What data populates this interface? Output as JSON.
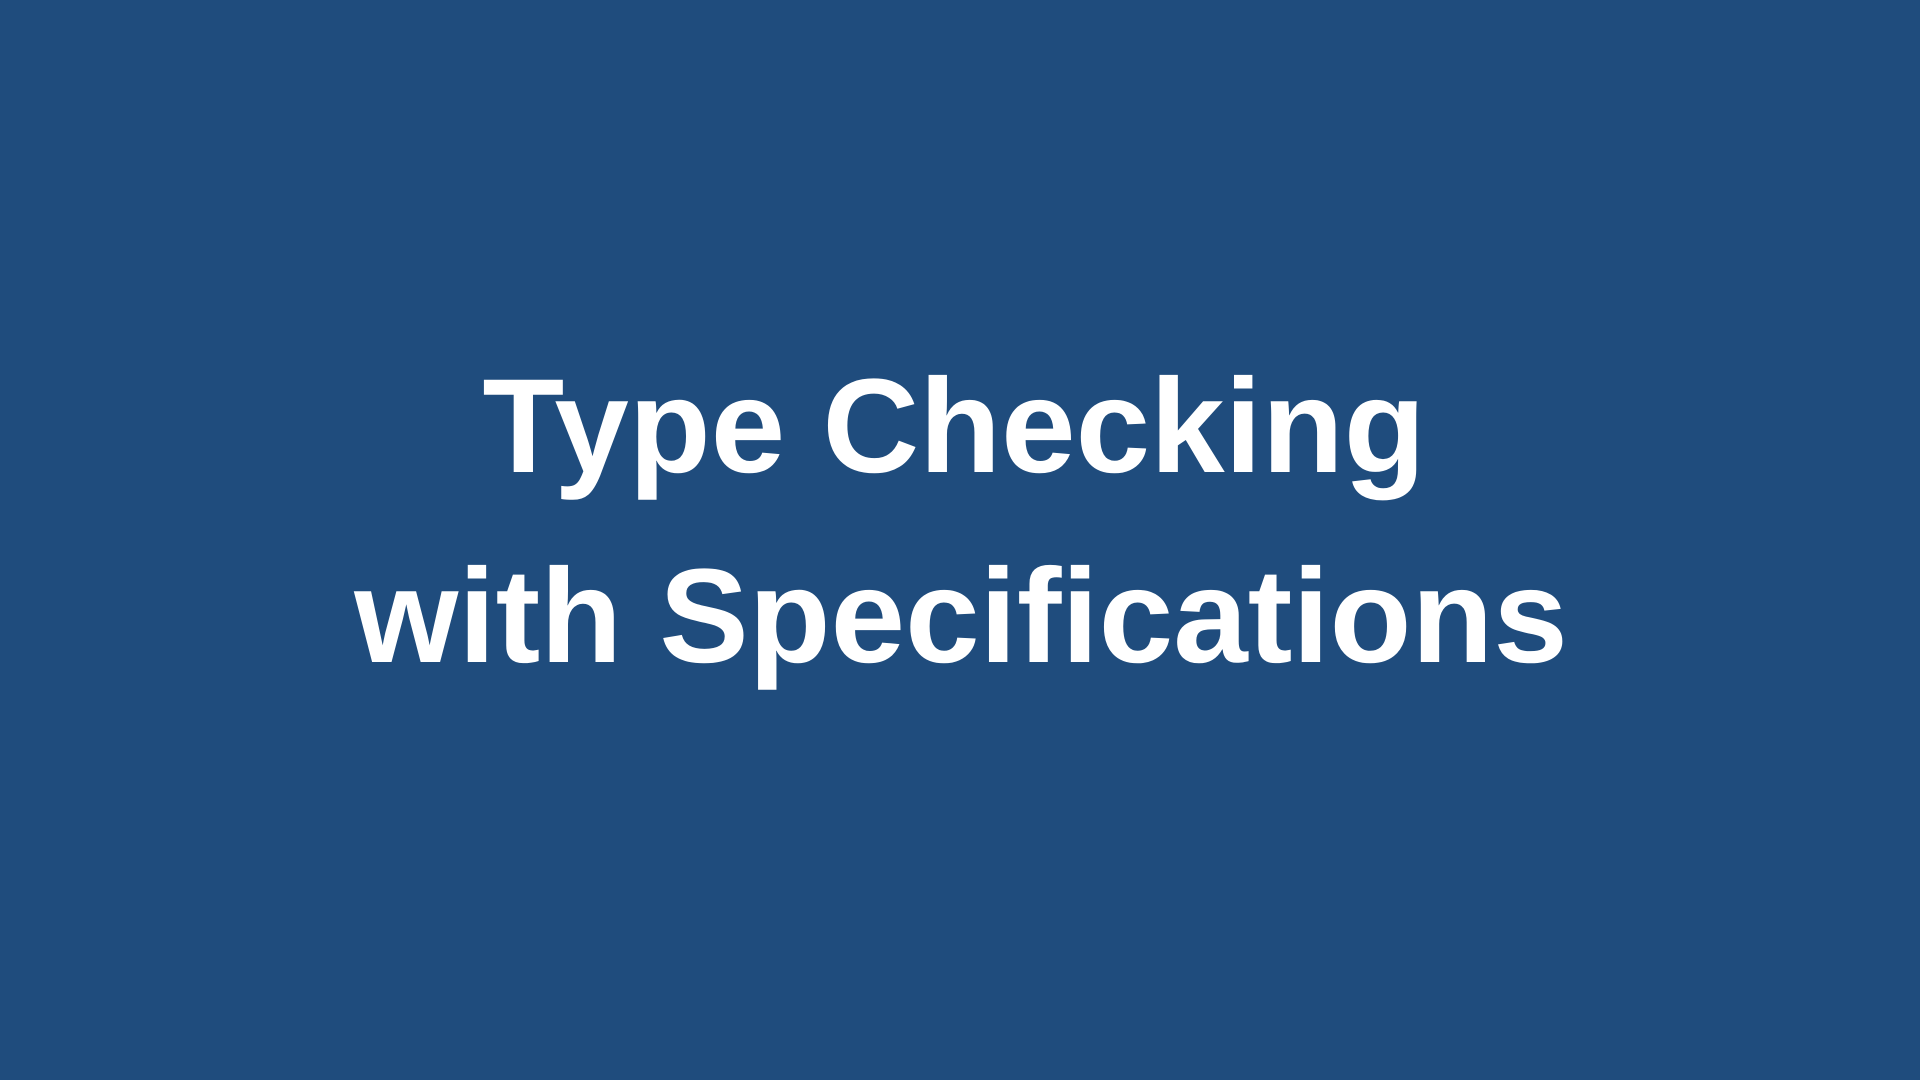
{
  "slide": {
    "title_lines": [
      "Type Checking",
      "with Specifications"
    ],
    "colors": {
      "background": "#1f4c7d",
      "text": "#ffffff"
    }
  }
}
